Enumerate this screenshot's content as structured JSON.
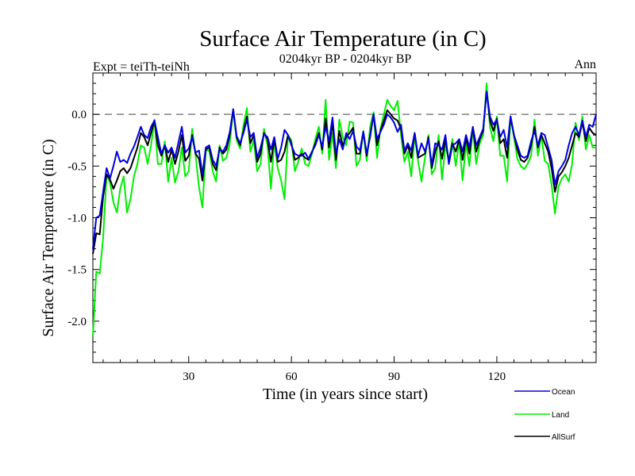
{
  "chart_data": {
    "type": "line",
    "title": "Surface Air Temperature (in C)",
    "subtitle": "0204kyr BP - 0204kyr BP",
    "left_label": "Expt = teiTh-teiNh",
    "right_label": "Ann",
    "xlabel": "Time (in years since start)",
    "ylabel": "Surface Air Temperature (in C)",
    "xlim": [
      2,
      149
    ],
    "ylim": [
      -2.4,
      0.4
    ],
    "xticks": [
      30,
      60,
      90,
      120
    ],
    "yticks": [
      -2.0,
      -1.5,
      -1.0,
      -0.5,
      0.0
    ],
    "ytick_labels": [
      "-2.0",
      "-1.5",
      "-1.0",
      "-0.5",
      "0.0"
    ],
    "reference_line": 0.0,
    "legend_position": "bottom-right",
    "x": [
      2,
      3,
      4,
      5,
      6,
      7,
      8,
      9,
      10,
      11,
      12,
      13,
      14,
      15,
      16,
      17,
      18,
      19,
      20,
      21,
      22,
      23,
      24,
      25,
      26,
      27,
      28,
      29,
      30,
      31,
      32,
      33,
      34,
      35,
      36,
      37,
      38,
      39,
      40,
      41,
      42,
      43,
      44,
      45,
      46,
      47,
      48,
      49,
      50,
      51,
      52,
      53,
      54,
      55,
      56,
      57,
      58,
      59,
      60,
      61,
      62,
      63,
      64,
      65,
      66,
      67,
      68,
      69,
      70,
      71,
      72,
      73,
      74,
      75,
      76,
      77,
      78,
      79,
      80,
      81,
      82,
      83,
      84,
      85,
      86,
      87,
      88,
      89,
      90,
      91,
      92,
      93,
      94,
      95,
      96,
      97,
      98,
      99,
      100,
      101,
      102,
      103,
      104,
      105,
      106,
      107,
      108,
      109,
      110,
      111,
      112,
      113,
      114,
      115,
      116,
      117,
      118,
      119,
      120,
      121,
      122,
      123,
      124,
      125,
      126,
      127,
      128,
      129,
      130,
      131,
      132,
      133,
      134,
      135,
      136,
      137,
      138,
      139,
      140,
      141,
      142,
      143,
      144,
      145,
      146,
      147,
      148,
      149
    ],
    "series": [
      {
        "name": "Ocean",
        "color": "#0000dd",
        "values": [
          -1.3,
          -1.0,
          -0.98,
          -0.75,
          -0.52,
          -0.62,
          -0.5,
          -0.36,
          -0.46,
          -0.44,
          -0.47,
          -0.38,
          -0.31,
          -0.22,
          -0.12,
          -0.2,
          -0.23,
          -0.12,
          -0.06,
          -0.22,
          -0.38,
          -0.3,
          -0.37,
          -0.32,
          -0.42,
          -0.27,
          -0.12,
          -0.37,
          -0.33,
          -0.22,
          -0.37,
          -0.35,
          -0.58,
          -0.32,
          -0.3,
          -0.44,
          -0.5,
          -0.34,
          -0.36,
          -0.3,
          -0.17,
          0.05,
          -0.21,
          -0.28,
          -0.18,
          -0.05,
          -0.22,
          -0.18,
          -0.42,
          -0.32,
          -0.19,
          -0.22,
          -0.34,
          -0.22,
          -0.43,
          -0.32,
          -0.15,
          -0.2,
          -0.3,
          -0.38,
          -0.4,
          -0.4,
          -0.37,
          -0.43,
          -0.36,
          -0.3,
          -0.2,
          -0.31,
          -0.12,
          -0.26,
          -0.03,
          -0.38,
          -0.24,
          -0.34,
          -0.18,
          -0.24,
          -0.16,
          -0.31,
          -0.35,
          -0.17,
          -0.38,
          -0.22,
          0.0,
          -0.24,
          -0.17,
          -0.1,
          0.0,
          -0.03,
          -0.08,
          -0.17,
          -0.1,
          -0.35,
          -0.28,
          -0.35,
          -0.18,
          -0.4,
          -0.28,
          -0.36,
          -0.24,
          -0.49,
          -0.28,
          -0.3,
          -0.34,
          -0.2,
          -0.48,
          -0.3,
          -0.28,
          -0.24,
          -0.36,
          -0.2,
          -0.32,
          -0.12,
          -0.3,
          -0.22,
          -0.14,
          0.22,
          -0.02,
          -0.1,
          -0.05,
          -0.22,
          -0.15,
          -0.32,
          -0.02,
          -0.2,
          -0.3,
          -0.4,
          -0.42,
          -0.4,
          -0.26,
          -0.16,
          -0.3,
          -0.18,
          -0.2,
          -0.32,
          -0.44,
          -0.68,
          -0.55,
          -0.5,
          -0.44,
          -0.3,
          -0.18,
          -0.12,
          -0.2,
          -0.06,
          -0.22,
          -0.1,
          -0.12,
          0.0
        ]
      },
      {
        "name": "Land",
        "color": "#00ee00",
        "values": [
          -2.15,
          -1.52,
          -1.54,
          -1.2,
          -0.58,
          -0.66,
          -0.85,
          -0.95,
          -0.72,
          -0.6,
          -0.95,
          -0.82,
          -0.6,
          -0.48,
          -0.3,
          -0.32,
          -0.48,
          -0.3,
          -0.05,
          -0.48,
          -0.48,
          -0.26,
          -0.65,
          -0.42,
          -0.66,
          -0.55,
          -0.32,
          -0.6,
          -0.55,
          -0.14,
          -0.4,
          -0.7,
          -0.9,
          -0.35,
          -0.35,
          -0.55,
          -0.65,
          -0.3,
          -0.45,
          -0.42,
          -0.28,
          0.05,
          -0.25,
          -0.33,
          -0.1,
          0.06,
          -0.36,
          -0.25,
          -0.55,
          -0.48,
          -0.14,
          -0.3,
          -0.72,
          -0.25,
          -0.52,
          -0.64,
          -0.82,
          -0.2,
          -0.25,
          -0.55,
          -0.46,
          -0.33,
          -0.48,
          -0.5,
          -0.38,
          -0.24,
          -0.12,
          -0.38,
          0.14,
          -0.44,
          -0.18,
          -0.52,
          -0.05,
          -0.22,
          -0.3,
          -0.07,
          -0.08,
          -0.5,
          -0.44,
          -0.16,
          -0.45,
          -0.12,
          0.02,
          -0.42,
          -0.14,
          0.0,
          0.14,
          0.08,
          0.04,
          0.13,
          -0.2,
          -0.46,
          -0.36,
          -0.6,
          -0.2,
          -0.45,
          -0.65,
          -0.42,
          -0.2,
          -0.58,
          -0.52,
          -0.2,
          -0.63,
          -0.3,
          -0.45,
          -0.24,
          -0.5,
          -0.26,
          -0.64,
          -0.28,
          -0.5,
          -0.14,
          -0.48,
          -0.28,
          -0.2,
          0.3,
          -0.12,
          -0.26,
          -0.02,
          -0.4,
          -0.4,
          -0.65,
          -0.03,
          -0.22,
          -0.43,
          -0.5,
          -0.53,
          -0.48,
          -0.4,
          -0.05,
          -0.4,
          -0.2,
          -0.45,
          -0.48,
          -0.68,
          -0.96,
          -0.7,
          -0.62,
          -0.58,
          -0.65,
          -0.48,
          -0.08,
          -0.25,
          -0.02,
          -0.34,
          -0.2,
          -0.32,
          -0.32
        ]
      },
      {
        "name": "AllSurf",
        "color": "#000000",
        "values": [
          -1.35,
          -1.15,
          -1.16,
          -0.8,
          -0.58,
          -0.63,
          -0.72,
          -0.64,
          -0.55,
          -0.52,
          -0.57,
          -0.52,
          -0.42,
          -0.32,
          -0.18,
          -0.22,
          -0.3,
          -0.18,
          -0.06,
          -0.3,
          -0.4,
          -0.3,
          -0.46,
          -0.34,
          -0.48,
          -0.36,
          -0.2,
          -0.45,
          -0.4,
          -0.2,
          -0.38,
          -0.43,
          -0.64,
          -0.34,
          -0.32,
          -0.48,
          -0.54,
          -0.32,
          -0.38,
          -0.34,
          -0.2,
          0.04,
          -0.22,
          -0.3,
          -0.16,
          -0.02,
          -0.28,
          -0.2,
          -0.46,
          -0.38,
          -0.18,
          -0.24,
          -0.46,
          -0.24,
          -0.46,
          -0.44,
          -0.36,
          -0.2,
          -0.28,
          -0.44,
          -0.42,
          -0.38,
          -0.42,
          -0.44,
          -0.37,
          -0.28,
          -0.18,
          -0.34,
          -0.04,
          -0.32,
          -0.08,
          -0.44,
          -0.16,
          -0.3,
          -0.22,
          -0.18,
          -0.13,
          -0.38,
          -0.38,
          -0.17,
          -0.4,
          -0.2,
          0.0,
          -0.3,
          -0.16,
          -0.06,
          0.04,
          0.0,
          -0.04,
          -0.06,
          -0.14,
          -0.38,
          -0.3,
          -0.42,
          -0.18,
          -0.42,
          -0.4,
          -0.38,
          -0.22,
          -0.52,
          -0.36,
          -0.26,
          -0.43,
          -0.24,
          -0.46,
          -0.28,
          -0.36,
          -0.24,
          -0.44,
          -0.23,
          -0.38,
          -0.13,
          -0.36,
          -0.24,
          -0.16,
          0.22,
          -0.06,
          -0.16,
          -0.04,
          -0.28,
          -0.24,
          -0.42,
          -0.02,
          -0.2,
          -0.34,
          -0.44,
          -0.46,
          -0.42,
          -0.3,
          -0.12,
          -0.32,
          -0.2,
          -0.28,
          -0.36,
          -0.52,
          -0.75,
          -0.6,
          -0.56,
          -0.5,
          -0.42,
          -0.3,
          -0.18,
          -0.22,
          -0.08,
          -0.26,
          -0.13,
          -0.18,
          -0.2
        ]
      }
    ]
  }
}
